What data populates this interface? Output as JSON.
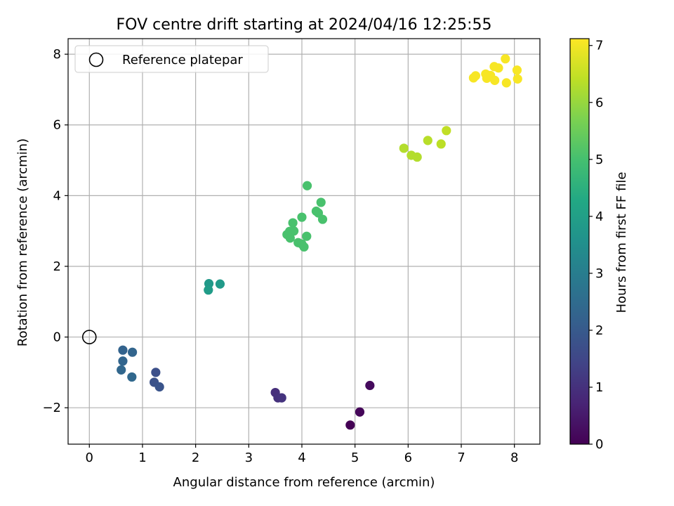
{
  "chart_data": {
    "type": "scatter",
    "title": "FOV centre drift starting at 2024/04/16 12:25:55",
    "xlabel": "Angular distance from reference (arcmin)",
    "ylabel": "Rotation from reference (arcmin)",
    "xlim": [
      -0.4,
      8.48
    ],
    "ylim": [
      -3.03,
      8.44
    ],
    "x_ticks": [
      0,
      1,
      2,
      3,
      4,
      5,
      6,
      7,
      8
    ],
    "y_ticks": [
      -2,
      0,
      2,
      4,
      6,
      8
    ],
    "x_tick_labels": [
      "0",
      "1",
      "2",
      "3",
      "4",
      "5",
      "6",
      "7",
      "8"
    ],
    "y_tick_labels": [
      "−2",
      "0",
      "2",
      "4",
      "6",
      "8"
    ],
    "grid": true,
    "legend": {
      "position": "top-left",
      "entries": [
        {
          "label": "Reference platepar",
          "marker": "open-circle"
        }
      ]
    },
    "reference": {
      "x": 0,
      "y": 0,
      "label": "Reference platepar"
    },
    "colorbar": {
      "label": "Hours from first FF file",
      "min": 0,
      "max": 7.12,
      "ticks": [
        0,
        1,
        2,
        3,
        4,
        5,
        6,
        7
      ],
      "tick_labels": [
        "0",
        "1",
        "2",
        "3",
        "4",
        "5",
        "6",
        "7"
      ],
      "colormap": "viridis"
    },
    "points": [
      {
        "x": 4.91,
        "y": -2.49,
        "hours": 0.0
      },
      {
        "x": 5.09,
        "y": -2.12,
        "hours": 0.1
      },
      {
        "x": 5.28,
        "y": -1.37,
        "hours": 0.2
      },
      {
        "x": 3.5,
        "y": -1.57,
        "hours": 0.95
      },
      {
        "x": 3.55,
        "y": -1.72,
        "hours": 1.0
      },
      {
        "x": 3.62,
        "y": -1.72,
        "hours": 1.05
      },
      {
        "x": 1.25,
        "y": -1.0,
        "hours": 1.75
      },
      {
        "x": 1.22,
        "y": -1.28,
        "hours": 1.8
      },
      {
        "x": 1.32,
        "y": -1.41,
        "hours": 1.85
      },
      {
        "x": 0.63,
        "y": -0.37,
        "hours": 2.25
      },
      {
        "x": 0.81,
        "y": -0.43,
        "hours": 2.3
      },
      {
        "x": 0.63,
        "y": -0.68,
        "hours": 2.3
      },
      {
        "x": 0.6,
        "y": -0.93,
        "hours": 2.35
      },
      {
        "x": 0.8,
        "y": -1.13,
        "hours": 2.4
      },
      {
        "x": 2.25,
        "y": 1.51,
        "hours": 3.8
      },
      {
        "x": 2.46,
        "y": 1.5,
        "hours": 3.85
      },
      {
        "x": 2.24,
        "y": 1.33,
        "hours": 3.9
      },
      {
        "x": 4.1,
        "y": 4.28,
        "hours": 5.05
      },
      {
        "x": 4.36,
        "y": 3.81,
        "hours": 5.05
      },
      {
        "x": 4.27,
        "y": 3.56,
        "hours": 5.05
      },
      {
        "x": 4.31,
        "y": 3.51,
        "hours": 5.05
      },
      {
        "x": 4.39,
        "y": 3.33,
        "hours": 5.05
      },
      {
        "x": 4.0,
        "y": 3.39,
        "hours": 5.05
      },
      {
        "x": 3.83,
        "y": 3.23,
        "hours": 5.05
      },
      {
        "x": 3.85,
        "y": 3.0,
        "hours": 5.05
      },
      {
        "x": 3.77,
        "y": 2.99,
        "hours": 5.05
      },
      {
        "x": 3.72,
        "y": 2.9,
        "hours": 5.05
      },
      {
        "x": 3.78,
        "y": 2.8,
        "hours": 5.05
      },
      {
        "x": 4.09,
        "y": 2.85,
        "hours": 5.05
      },
      {
        "x": 3.93,
        "y": 2.67,
        "hours": 5.05
      },
      {
        "x": 4.0,
        "y": 2.63,
        "hours": 5.05
      },
      {
        "x": 4.04,
        "y": 2.55,
        "hours": 5.05
      },
      {
        "x": 5.92,
        "y": 5.34,
        "hours": 6.3
      },
      {
        "x": 6.06,
        "y": 5.14,
        "hours": 6.3
      },
      {
        "x": 6.17,
        "y": 5.09,
        "hours": 6.3
      },
      {
        "x": 6.37,
        "y": 5.56,
        "hours": 6.35
      },
      {
        "x": 6.62,
        "y": 5.46,
        "hours": 6.4
      },
      {
        "x": 6.72,
        "y": 5.84,
        "hours": 6.45
      },
      {
        "x": 7.23,
        "y": 7.33,
        "hours": 7.05
      },
      {
        "x": 7.27,
        "y": 7.39,
        "hours": 7.05
      },
      {
        "x": 7.46,
        "y": 7.44,
        "hours": 7.05
      },
      {
        "x": 7.48,
        "y": 7.32,
        "hours": 7.05
      },
      {
        "x": 7.55,
        "y": 7.4,
        "hours": 7.05
      },
      {
        "x": 7.62,
        "y": 7.65,
        "hours": 7.05
      },
      {
        "x": 7.63,
        "y": 7.26,
        "hours": 7.05
      },
      {
        "x": 7.7,
        "y": 7.61,
        "hours": 7.05
      },
      {
        "x": 7.83,
        "y": 7.87,
        "hours": 7.05
      },
      {
        "x": 7.85,
        "y": 7.19,
        "hours": 7.05
      },
      {
        "x": 8.05,
        "y": 7.55,
        "hours": 7.05
      },
      {
        "x": 8.06,
        "y": 7.3,
        "hours": 7.05
      }
    ]
  }
}
